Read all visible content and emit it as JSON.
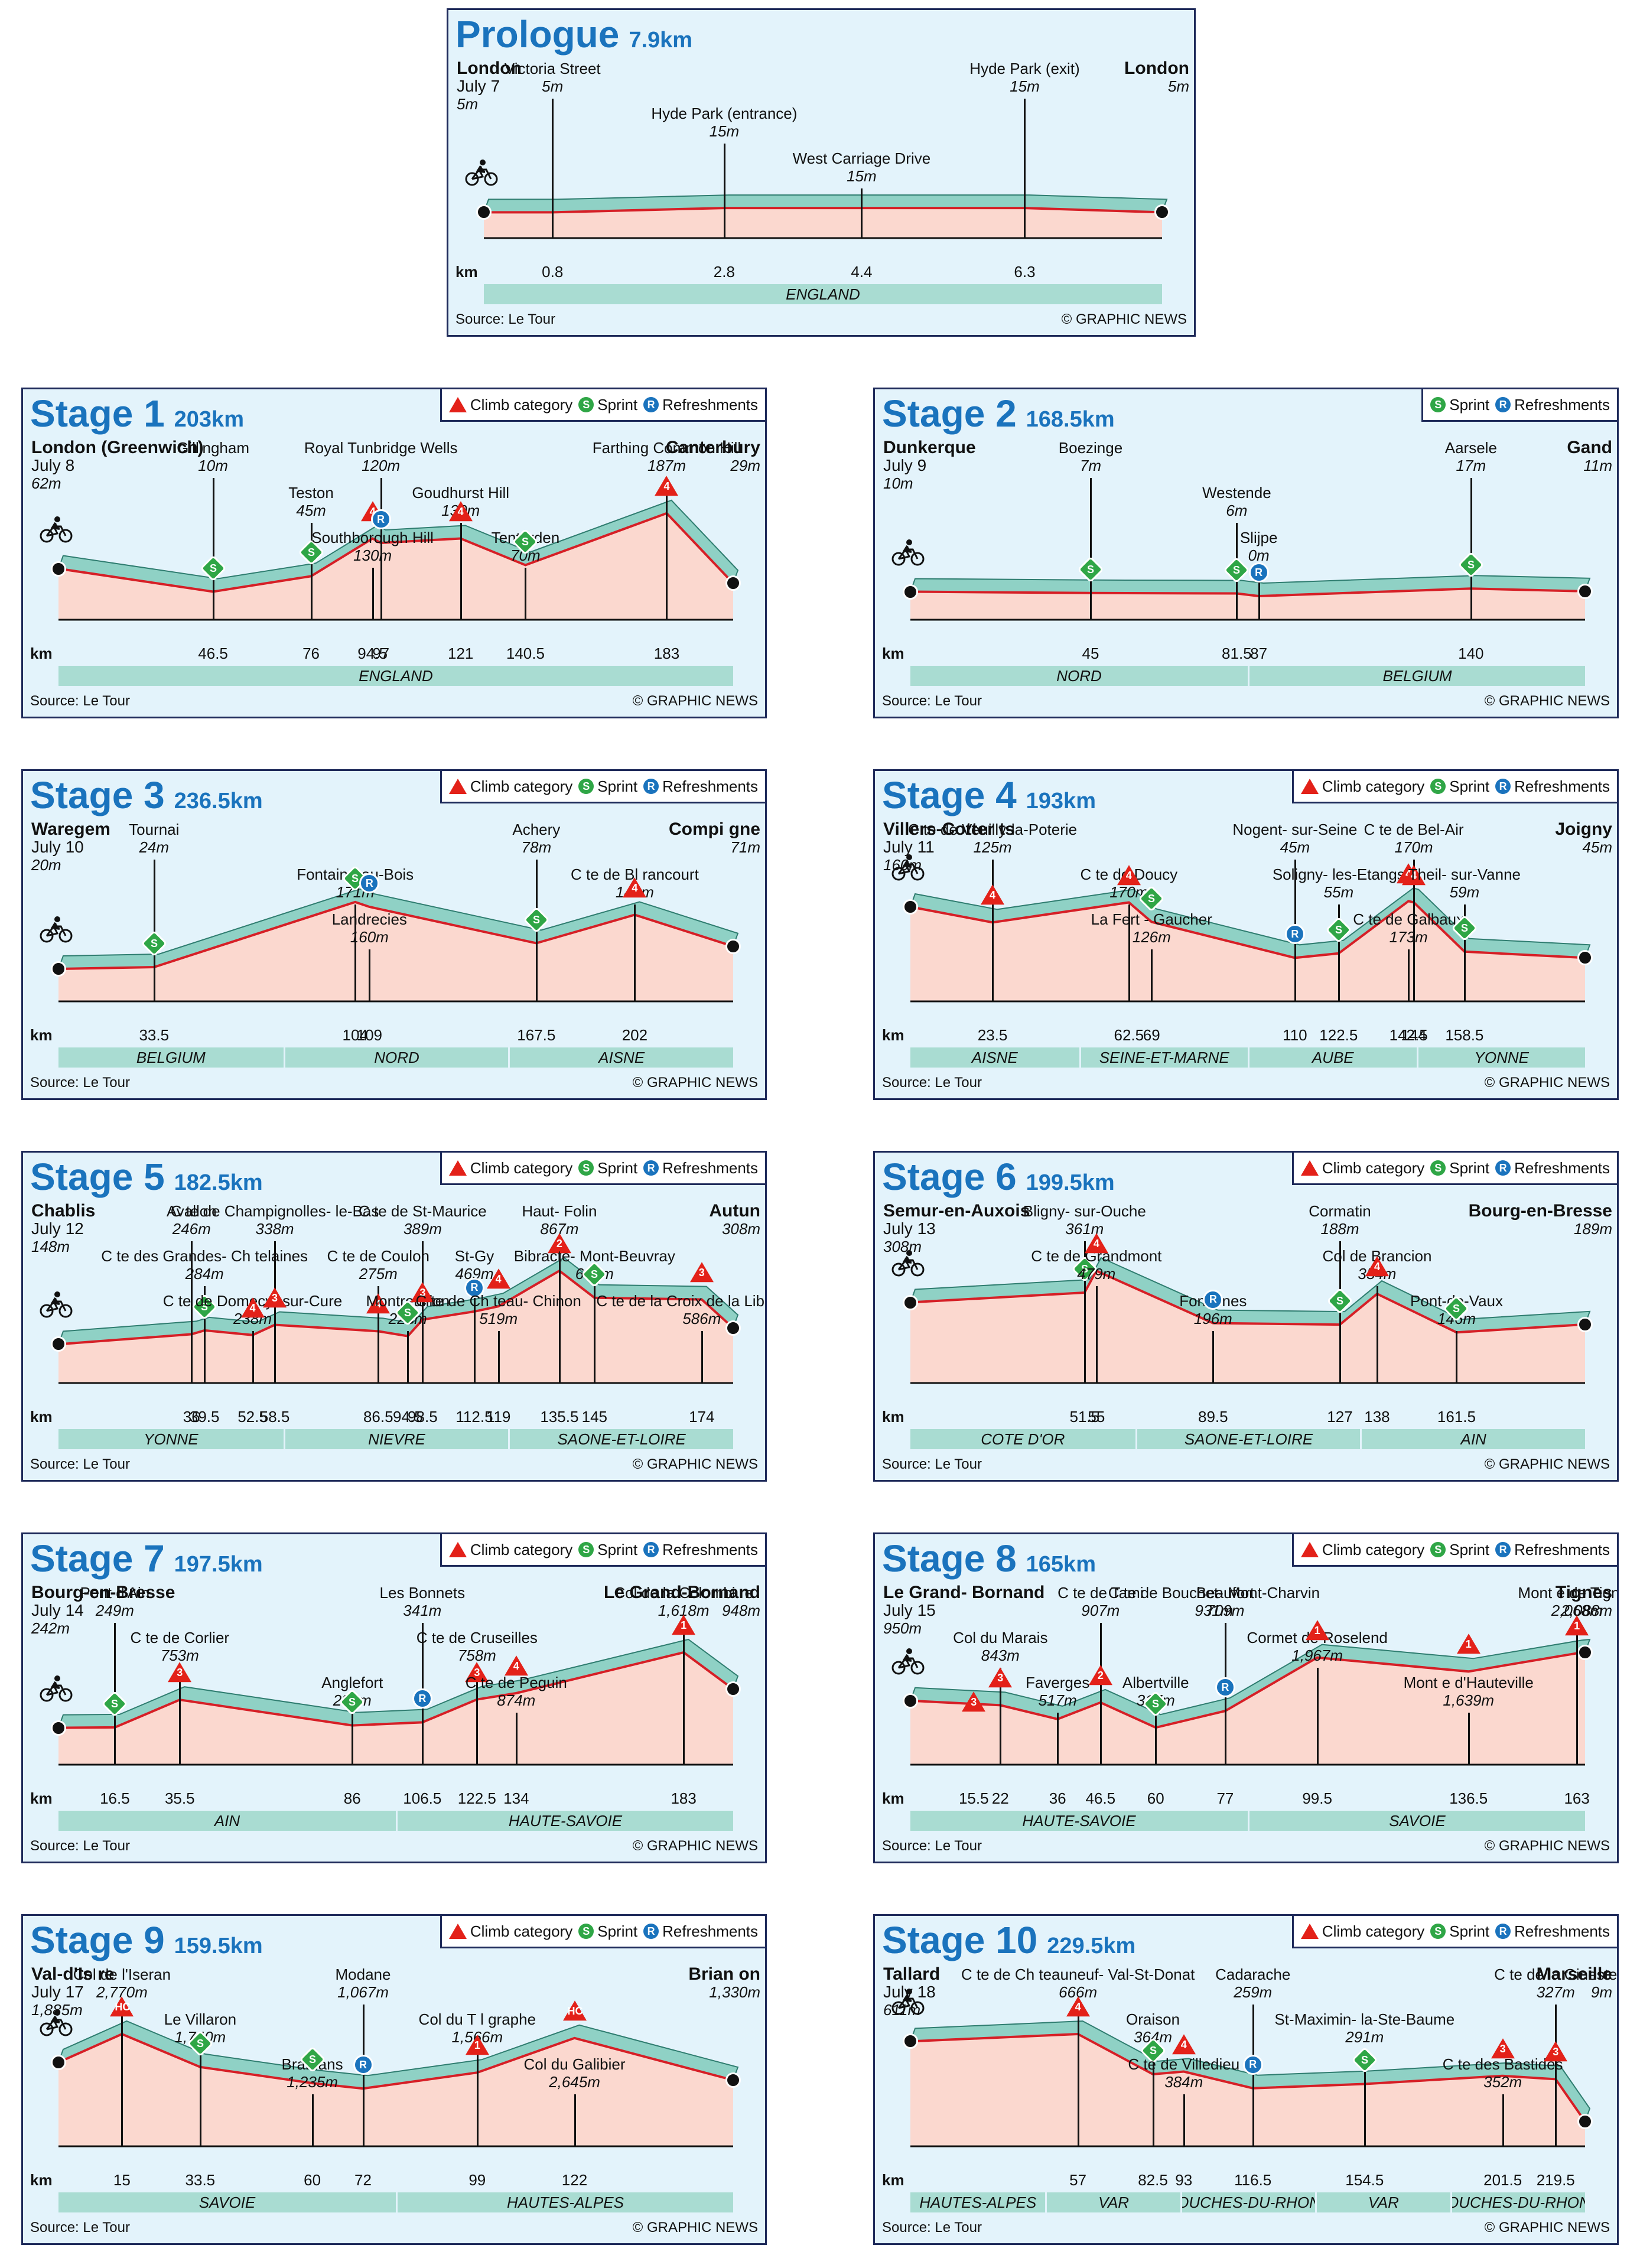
{
  "legend": {
    "climb": "Climb category",
    "sprint": "Sprint",
    "refresh": "Refreshments"
  },
  "symbols": {
    "sprint": "S",
    "refresh": "R"
  },
  "source": "Source: Le Tour",
  "credit": "© GRAPHIC NEWS",
  "km_label": "km",
  "prologue": {
    "title": "Prologue",
    "distance": "7.9km",
    "start": {
      "name": "London",
      "date": "July 7",
      "height": "5m"
    },
    "finish": {
      "name": "London",
      "height": "5m"
    },
    "points": [
      {
        "name": "Victoria Street",
        "height": "5m",
        "km": "0.8"
      },
      {
        "name": "Hyde Park (entrance)",
        "height": "15m",
        "km": "2.8"
      },
      {
        "name": "West Carriage Drive",
        "height": "15m",
        "km": "4.4"
      },
      {
        "name": "Hyde Park (exit)",
        "height": "15m",
        "km": "6.3"
      }
    ],
    "regions": [
      "ENGLAND"
    ]
  },
  "stages": [
    {
      "title": "Stage 1",
      "distance": "203km",
      "legend": [
        "climb",
        "sprint",
        "refresh"
      ],
      "start": {
        "name": "London (Greenwich)",
        "date": "July 8",
        "height": "62m"
      },
      "finish": {
        "name": "Canterbury",
        "height": "29m"
      },
      "places": [
        {
          "name": "Gillingham",
          "height": "10m",
          "km": "46.5",
          "marker": "sprint"
        },
        {
          "name": "Teston",
          "height": "45m",
          "km": "76",
          "marker": "sprint"
        },
        {
          "name": "Southborough Hill",
          "height": "130m",
          "km": "94.5",
          "marker": "climb",
          "cat": "4"
        },
        {
          "name": "Royal Tunbridge Wells",
          "height": "120m",
          "km": "97",
          "marker": "refresh"
        },
        {
          "name": "Goudhurst Hill",
          "height": "130m",
          "km": "121",
          "marker": "climb",
          "cat": "4"
        },
        {
          "name": "Tenterden",
          "height": "70m",
          "km": "140.5",
          "marker": "sprint"
        },
        {
          "name": "Farthing Common Hill",
          "height": "187m",
          "km": "183",
          "marker": "climb",
          "cat": "4"
        }
      ],
      "regions": [
        "ENGLAND"
      ]
    },
    {
      "title": "Stage 2",
      "distance": "168.5km",
      "legend": [
        "sprint",
        "refresh"
      ],
      "start": {
        "name": "Dunkerque",
        "date": "July 9",
        "height": "10m"
      },
      "finish": {
        "name": "Gand",
        "height": "11m"
      },
      "places": [
        {
          "name": "Boezinge",
          "height": "7m",
          "km": "45",
          "marker": "sprint"
        },
        {
          "name": "Westende",
          "height": "6m",
          "km": "81.5",
          "marker": "sprint"
        },
        {
          "name": "Slijpe",
          "height": "0m",
          "km": "87",
          "marker": "refresh"
        },
        {
          "name": "Aarsele",
          "height": "17m",
          "km": "140",
          "marker": "sprint"
        }
      ],
      "regions": [
        "NORD",
        "BELGIUM"
      ]
    },
    {
      "title": "Stage 3",
      "distance": "236.5km",
      "legend": [
        "climb",
        "sprint",
        "refresh"
      ],
      "start": {
        "name": "Waregem",
        "date": "July 10",
        "height": "20m"
      },
      "finish": {
        "name": "Compi gne",
        "height": "71m"
      },
      "places": [
        {
          "name": "Tournai",
          "height": "24m",
          "km": "33.5",
          "marker": "sprint"
        },
        {
          "name": "Fontaine-au-Bois",
          "height": "171m",
          "km": "104",
          "marker": "sprint"
        },
        {
          "name": "Landrecies",
          "height": "160m",
          "km": "109",
          "marker": "refresh"
        },
        {
          "name": "Achery",
          "height": "78m",
          "km": "167.5",
          "marker": "sprint"
        },
        {
          "name": "C te de Bl rancourt",
          "height": "142m",
          "km": "202",
          "marker": "climb",
          "cat": "4"
        }
      ],
      "regions": [
        "BELGIUM",
        "NORD",
        "AISNE"
      ]
    },
    {
      "title": "Stage 4",
      "distance": "193km",
      "legend": [
        "climb",
        "sprint",
        "refresh"
      ],
      "start": {
        "name": "Villers-Cotter ts",
        "date": "July 11",
        "height": "160m"
      },
      "finish": {
        "name": "Joigny",
        "height": "45m"
      },
      "places": [
        {
          "name": "C te de Veuilly-la-Poterie",
          "height": "125m",
          "km": "23.5",
          "marker": "climb",
          "cat": "4"
        },
        {
          "name": "C te de Doucy",
          "height": "170m",
          "km": "62.5",
          "marker": "climb",
          "cat": "4"
        },
        {
          "name": "La Fert - Gaucher",
          "height": "126m",
          "km": "69",
          "marker": "sprint"
        },
        {
          "name": "Nogent- sur-Seine",
          "height": "45m",
          "km": "110",
          "marker": "refresh"
        },
        {
          "name": "Soligny- les-Etangs",
          "height": "55m",
          "km": "122.5",
          "marker": "sprint"
        },
        {
          "name": "C te de Galbaux",
          "height": "173m",
          "km": "142.5",
          "marker": "climb",
          "cat": "4"
        },
        {
          "name": "C te de Bel-Air",
          "height": "170m",
          "km": "144",
          "marker": "climb",
          "cat": "4"
        },
        {
          "name": "Theil- sur-Vanne",
          "height": "59m",
          "km": "158.5",
          "marker": "sprint"
        }
      ],
      "regions": [
        "AISNE",
        "SEINE-ET-MARNE",
        "AUBE",
        "YONNE"
      ]
    },
    {
      "title": "Stage 5",
      "distance": "182.5km",
      "legend": [
        "climb",
        "sprint",
        "refresh"
      ],
      "start": {
        "name": "Chablis",
        "date": "July 12",
        "height": "148m"
      },
      "finish": {
        "name": "Autun",
        "height": "308m"
      },
      "places": [
        {
          "name": "Avallon",
          "height": "246m",
          "km": "36",
          "marker": ""
        },
        {
          "name": "C te des Grandes- Ch telaines",
          "height": "284m",
          "km": "39.5",
          "marker": "sprint"
        },
        {
          "name": "C te de Domecy- sur-Cure",
          "height": "238m",
          "km": "52.5",
          "marker": "climb",
          "cat": "4"
        },
        {
          "name": "C te de Champignolles- le-Bas",
          "height": "338m",
          "km": "58.5",
          "marker": "climb",
          "cat": "3"
        },
        {
          "name": "C te de Coulon",
          "height": "275m",
          "km": "86.5",
          "marker": "climb",
          "cat": "4"
        },
        {
          "name": "Montreuillon",
          "height": "228m",
          "km": "94.5",
          "marker": "sprint"
        },
        {
          "name": "C te de St-Maurice",
          "height": "389m",
          "km": "98.5",
          "marker": "climb",
          "cat": "3"
        },
        {
          "name": "St-Gy",
          "height": "469m",
          "km": "112.5",
          "marker": "refresh"
        },
        {
          "name": "C te de Ch teau- Chinon",
          "height": "519m",
          "km": "119",
          "marker": "climb",
          "cat": "4"
        },
        {
          "name": "Haut- Folin",
          "height": "867m",
          "km": "135.5",
          "marker": "climb",
          "cat": "2"
        },
        {
          "name": "Bibracte- Mont-Beuvray",
          "height": "603m",
          "km": "145",
          "marker": "sprint"
        },
        {
          "name": "C te de la Croix de la Lib ration",
          "height": "586m",
          "km": "174",
          "marker": "climb",
          "cat": "3"
        }
      ],
      "regions": [
        "YONNE",
        "NIEVRE",
        "SAONE-ET-LOIRE"
      ]
    },
    {
      "title": "Stage 6",
      "distance": "199.5km",
      "legend": [
        "climb",
        "sprint",
        "refresh"
      ],
      "start": {
        "name": "Semur-en-Auxois",
        "date": "July 13",
        "height": "308m"
      },
      "finish": {
        "name": "Bourg-en-Bresse",
        "height": "189m"
      },
      "places": [
        {
          "name": "Bligny- sur-Ouche",
          "height": "361m",
          "km": "51.5",
          "marker": "sprint"
        },
        {
          "name": "C te de Grandmont",
          "height": "479m",
          "km": "55",
          "marker": "climb",
          "cat": "4"
        },
        {
          "name": "Fontaines",
          "height": "196m",
          "km": "89.5",
          "marker": "refresh"
        },
        {
          "name": "Cormatin",
          "height": "188m",
          "km": "127",
          "marker": "sprint"
        },
        {
          "name": "Col de Brancion",
          "height": "354m",
          "km": "138",
          "marker": "climb",
          "cat": "4"
        },
        {
          "name": "Pont-de-Vaux",
          "height": "146m",
          "km": "161.5",
          "marker": "sprint"
        }
      ],
      "regions": [
        "COTE D'OR",
        "SAONE-ET-LOIRE",
        "AIN"
      ]
    },
    {
      "title": "Stage 7",
      "distance": "197.5km",
      "legend": [
        "climb",
        "sprint",
        "refresh"
      ],
      "start": {
        "name": "Bourg-en-Bresse",
        "date": "July 14",
        "height": "242m"
      },
      "finish": {
        "name": "Le Grand-Bornand",
        "height": "948m"
      },
      "places": [
        {
          "name": "Pont d'Ain",
          "height": "249m",
          "km": "16.5",
          "marker": "sprint"
        },
        {
          "name": "C te de Corlier",
          "height": "753m",
          "km": "35.5",
          "marker": "climb",
          "cat": "3"
        },
        {
          "name": "Anglefort",
          "height": "285m",
          "km": "86",
          "marker": "sprint"
        },
        {
          "name": "Les Bonnets",
          "height": "341m",
          "km": "106.5",
          "marker": "refresh"
        },
        {
          "name": "C te de Cruseilles",
          "height": "758m",
          "km": "122.5",
          "marker": "climb",
          "cat": "3"
        },
        {
          "name": "C te de Peguin",
          "height": "874m",
          "km": "134",
          "marker": "climb",
          "cat": "4"
        },
        {
          "name": "Col de la Colombi re",
          "height": "1,618m",
          "km": "183",
          "marker": "climb",
          "cat": "1"
        }
      ],
      "regions": [
        "AIN",
        "HAUTE-SAVOIE"
      ]
    },
    {
      "title": "Stage 8",
      "distance": "165km",
      "legend": [
        "climb",
        "sprint",
        "refresh"
      ],
      "start": {
        "name": "Le Grand- Bornand",
        "date": "July 15",
        "height": "950m"
      },
      "finish": {
        "name": "Tignes",
        "height": "2,088m"
      },
      "places": [
        {
          "name": "",
          "height": "",
          "km": "15.5",
          "marker": "climb",
          "cat": "3"
        },
        {
          "name": "Col du Marais",
          "height": "843m",
          "km": "22",
          "marker": "climb",
          "cat": "3"
        },
        {
          "name": "Faverges",
          "height": "517m",
          "km": "36",
          "marker": ""
        },
        {
          "name": "C te de Tami",
          "height": "907m",
          "km": "46.5",
          "marker": "climb",
          "cat": "2"
        },
        {
          "name": "C te de Bouchet- Mont-Charvin",
          "height": "931m",
          "km": "",
          "marker": ""
        },
        {
          "name": "Albertville",
          "height": "317m",
          "km": "60",
          "marker": "sprint"
        },
        {
          "name": "Beaufort",
          "height": "709m",
          "km": "77",
          "marker": "refresh"
        },
        {
          "name": "Cormet de Roselend",
          "height": "1,967m",
          "km": "99.5",
          "marker": "climb",
          "cat": "1"
        },
        {
          "name": "Mont e d'Hauteville",
          "height": "1,639m",
          "km": "136.5",
          "marker": "climb",
          "cat": "1"
        },
        {
          "name": "Mont e de Tignes",
          "height": "2,068m",
          "km": "163",
          "marker": "climb",
          "cat": "1"
        }
      ],
      "regions": [
        "HAUTE-SAVOIE",
        "SAVOIE"
      ]
    },
    {
      "title": "Stage 9",
      "distance": "159.5km",
      "legend": [
        "climb",
        "sprint",
        "refresh"
      ],
      "start": {
        "name": "Val-d'Is re",
        "date": "July 17",
        "height": "1,885m"
      },
      "finish": {
        "name": "Brian on",
        "height": "1,330m"
      },
      "places": [
        {
          "name": "Col de l'Iseran",
          "height": "2,770m",
          "km": "15",
          "marker": "climb",
          "cat": "HC"
        },
        {
          "name": "Le Villaron",
          "height": "1,740m",
          "km": "33.5",
          "marker": "sprint"
        },
        {
          "name": "Bramans",
          "height": "1,235m",
          "km": "60",
          "marker": "sprint"
        },
        {
          "name": "Modane",
          "height": "1,067m",
          "km": "72",
          "marker": "refresh"
        },
        {
          "name": "Col du T l graphe",
          "height": "1,566m",
          "km": "99",
          "marker": "climb",
          "cat": "1"
        },
        {
          "name": "Col du Galibier",
          "height": "2,645m",
          "km": "122",
          "marker": "climb",
          "cat": "HC"
        }
      ],
      "regions": [
        "SAVOIE",
        "HAUTES-ALPES"
      ]
    },
    {
      "title": "Stage 10",
      "distance": "229.5km",
      "legend": [
        "climb",
        "sprint",
        "refresh"
      ],
      "start": {
        "name": "Tallard",
        "date": "July 18",
        "height": "611m"
      },
      "finish": {
        "name": "Marseille",
        "height": "9m"
      },
      "places": [
        {
          "name": "C te de Ch teauneuf- Val-St-Donat",
          "height": "666m",
          "km": "57",
          "marker": "climb",
          "cat": "4"
        },
        {
          "name": "Oraison",
          "height": "364m",
          "km": "82.5",
          "marker": "sprint"
        },
        {
          "name": "C te de Villedieu",
          "height": "384m",
          "km": "93",
          "marker": "climb",
          "cat": "4"
        },
        {
          "name": "Cadarache",
          "height": "259m",
          "km": "116.5",
          "marker": "refresh"
        },
        {
          "name": "St-Maximin- la-Ste-Baume",
          "height": "291m",
          "km": "154.5",
          "marker": "sprint"
        },
        {
          "name": "C te des Bastides",
          "height": "352m",
          "km": "201.5",
          "marker": "climb",
          "cat": "3"
        },
        {
          "name": "C te de la Gineste",
          "height": "327m",
          "km": "219.5",
          "marker": "climb",
          "cat": "3"
        }
      ],
      "regions": [
        "HAUTES-ALPES",
        "VAR",
        "BOUCHES-DU-RHONE",
        "VAR",
        "BOUCHES-DU-RHONE"
      ]
    }
  ]
}
